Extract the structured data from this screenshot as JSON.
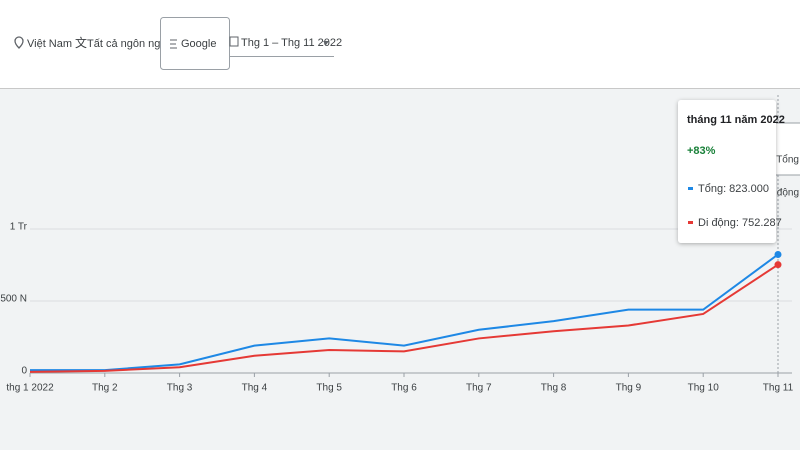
{
  "toolbar": {
    "location": "Việt Nam",
    "language": "Tất cả ngôn ngữ",
    "network": "Google",
    "date_range": "Thg 1 – Thg 11 2022"
  },
  "chart_data": {
    "type": "line",
    "categories": [
      "thg 1 2022",
      "Thg 2",
      "Thg 3",
      "Thg 4",
      "Thg 5",
      "Thg 6",
      "Thg 7",
      "Thg 8",
      "Thg 9",
      "Thg 10",
      "Thg 11"
    ],
    "series": [
      {
        "name": "Tổng",
        "color": "#1e88e5",
        "values": [
          20000,
          20000,
          60000,
          190000,
          240000,
          190000,
          300000,
          360000,
          440000,
          440000,
          823000
        ]
      },
      {
        "name": "Di động",
        "color": "#e53935",
        "values": [
          8000,
          15000,
          40000,
          120000,
          160000,
          150000,
          240000,
          290000,
          330000,
          410000,
          752287
        ]
      }
    ],
    "ylim": [
      0,
      1000000
    ],
    "yticks": [
      0,
      {
        "value": 500000,
        "label": "500 N"
      },
      {
        "value": 1000000,
        "label": "1 Tr"
      }
    ],
    "grid": true,
    "tooltip": {
      "title": "tháng 11 năm 2022",
      "change": "+83%",
      "entries": [
        "Tổng: 823.000",
        "Di động: 752.287"
      ]
    }
  }
}
